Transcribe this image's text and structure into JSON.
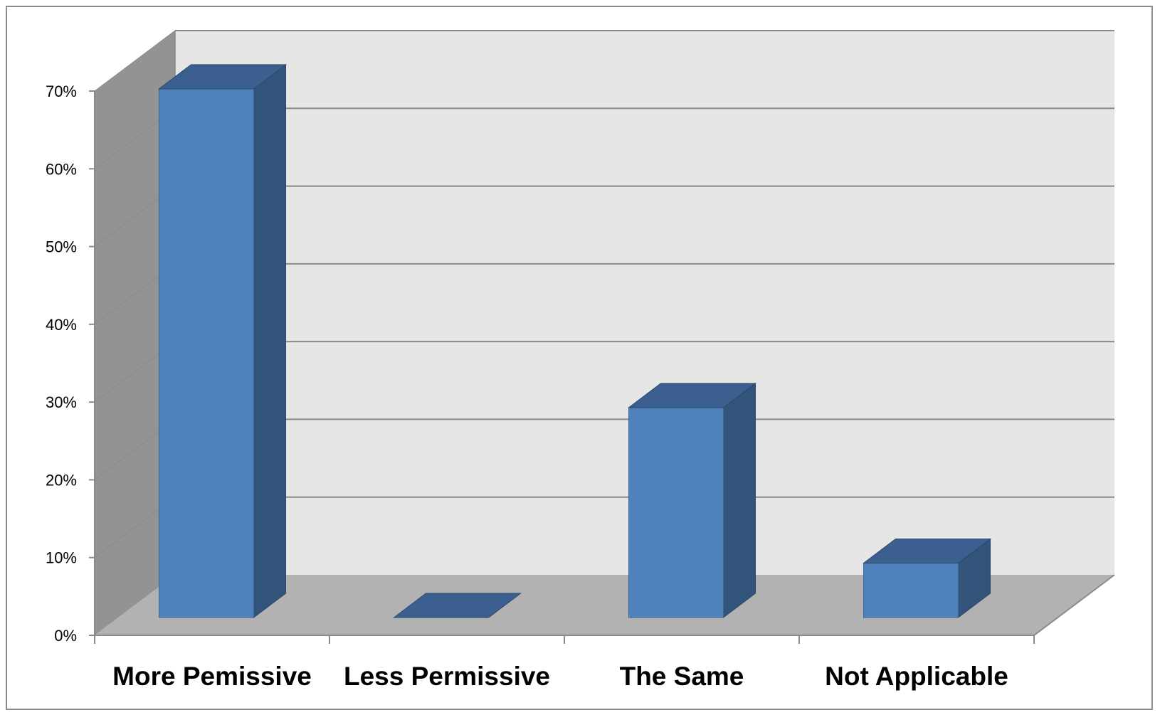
{
  "chart_data": {
    "type": "bar",
    "style": "3d-column",
    "title": "",
    "xlabel": "",
    "ylabel": "",
    "categories": [
      "More Pemissive",
      "Less Permissive",
      "The Same",
      "Not Applicable"
    ],
    "values": [
      68,
      0,
      27,
      7
    ],
    "ylim": [
      0,
      70
    ],
    "yticks": [
      "0%",
      "10%",
      "20%",
      "30%",
      "40%",
      "50%",
      "60%",
      "70%"
    ],
    "grid": true,
    "legend": "none",
    "colors": {
      "bar_front": "#4f81bd",
      "bar_top": "#3b6090",
      "bar_side": "#32547b",
      "back_wall": "#e6e6e6",
      "side_wall": "#939393",
      "floor": "#b2b2b2",
      "gridline": "#8a8a8a"
    }
  }
}
